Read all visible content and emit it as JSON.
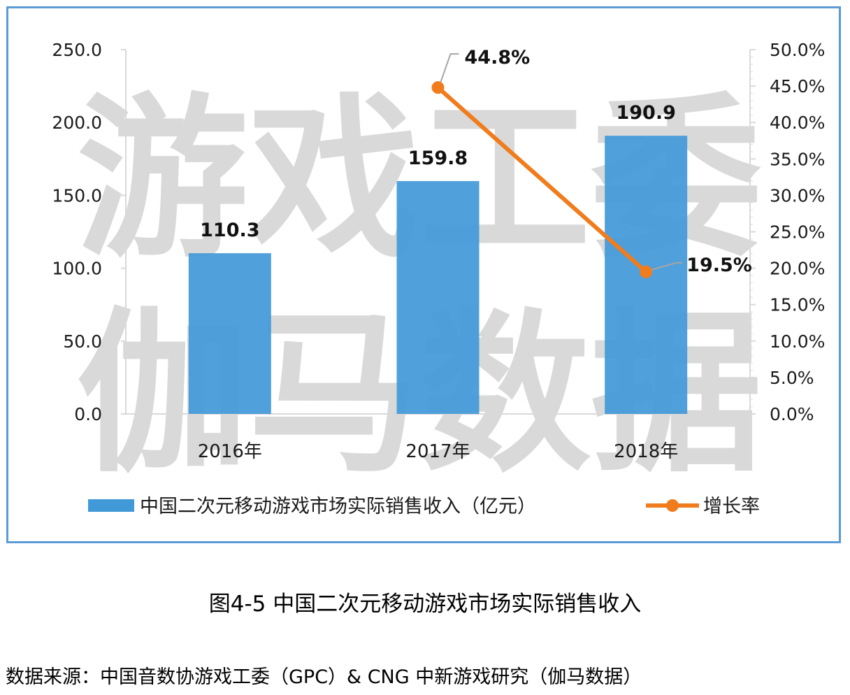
{
  "watermark": [
    "游戏工委",
    "伽马数据"
  ],
  "caption": "图4-5  中国二次元移动游戏市场实际销售收入",
  "source": "数据来源：中国音数协游戏工委（GPC）& CNG 中新游戏研究（伽马数据）",
  "chart_data": {
    "type": "bar+line",
    "categories": [
      "2016年",
      "2017年",
      "2018年"
    ],
    "series": [
      {
        "name": "中国二次元移动游戏市场实际销售收入（亿元）",
        "type": "bar",
        "axis": "left",
        "values": [
          110.3,
          159.8,
          190.9
        ],
        "labels": [
          "110.3",
          "159.8",
          "190.9"
        ],
        "color": "#4299d8"
      },
      {
        "name": "增长率",
        "type": "line",
        "axis": "right",
        "values": [
          null,
          44.8,
          19.5
        ],
        "labels": [
          null,
          "44.8%",
          "19.5%"
        ],
        "color": "#f07c1d"
      }
    ],
    "y_left": {
      "min": 0,
      "max": 250,
      "ticks": [
        "0.0",
        "50.0",
        "100.0",
        "150.0",
        "200.0",
        "250.0"
      ]
    },
    "y_right": {
      "min": 0,
      "max": 50,
      "ticks": [
        "0.0%",
        "5.0%",
        "10.0%",
        "15.0%",
        "20.0%",
        "25.0%",
        "30.0%",
        "35.0%",
        "40.0%",
        "45.0%",
        "50.0%"
      ]
    },
    "legend_position": "bottom",
    "grid": false,
    "title": ""
  }
}
